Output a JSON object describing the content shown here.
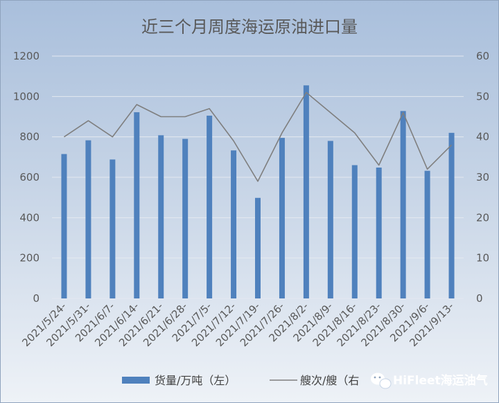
{
  "chart_data": {
    "type": "bar",
    "title": "近三个月周度海运原油进口量",
    "categories": [
      "2021/5/24-",
      "2021/5/31-",
      "2021/6/7-",
      "2021/6/14-",
      "2021/6/21-",
      "2021/6/28-",
      "2021/7/5-",
      "2021/7/12-",
      "2021/7/19-",
      "2021/7/26-",
      "2021/8/2-",
      "2021/8/9-",
      "2021/8/16-",
      "2021/8/23-",
      "2021/8/30-",
      "2021/9/6-",
      "2021/9/13-"
    ],
    "series": [
      {
        "name": "货量/万吨（左）",
        "type": "bar",
        "axis": "left",
        "color": "#4f81bd",
        "values": [
          715,
          783,
          688,
          922,
          808,
          790,
          905,
          733,
          498,
          795,
          1055,
          780,
          660,
          648,
          928,
          632,
          820
        ]
      },
      {
        "name": "艘次/艘（右",
        "type": "line",
        "axis": "right",
        "color": "#7f7f7f",
        "values": [
          40,
          44,
          40,
          48,
          45,
          45,
          47,
          39,
          29,
          41,
          51,
          46,
          41,
          33,
          46,
          32,
          38
        ]
      }
    ],
    "y_left": {
      "range": [
        0,
        1200
      ],
      "ticks": [
        "0",
        "200",
        "400",
        "600",
        "800",
        "1000",
        "1200"
      ]
    },
    "y_right": {
      "range": [
        0,
        60
      ],
      "ticks": [
        "0",
        "10",
        "20",
        "30",
        "40",
        "50",
        "60"
      ]
    },
    "grid": true,
    "legend_position": "bottom",
    "watermark": {
      "text": "HiFleet海运油气",
      "icon": "wechat-icon"
    }
  }
}
